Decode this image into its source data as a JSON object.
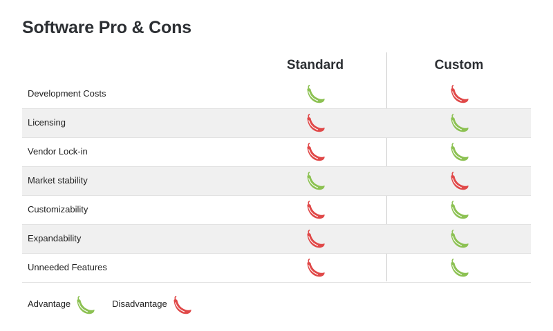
{
  "title": "Software Pro & Cons",
  "columns": [
    "Standard",
    "Custom"
  ],
  "colors": {
    "advantage": "#8cc152",
    "disadvantage": "#e04848"
  },
  "rows": [
    {
      "label": "Development Costs",
      "standard": "advantage",
      "custom": "disadvantage"
    },
    {
      "label": "Licensing",
      "standard": "disadvantage",
      "custom": "advantage"
    },
    {
      "label": "Vendor Lock-in",
      "standard": "disadvantage",
      "custom": "advantage"
    },
    {
      "label": "Market stability",
      "standard": "advantage",
      "custom": "disadvantage"
    },
    {
      "label": "Customizability",
      "standard": "disadvantage",
      "custom": "advantage"
    },
    {
      "label": "Expandability",
      "standard": "disadvantage",
      "custom": "advantage"
    },
    {
      "label": "Unneeded Features",
      "standard": "disadvantage",
      "custom": "advantage"
    }
  ],
  "legend": {
    "advantage_label": "Advantage",
    "disadvantage_label": "Disadvantage"
  }
}
